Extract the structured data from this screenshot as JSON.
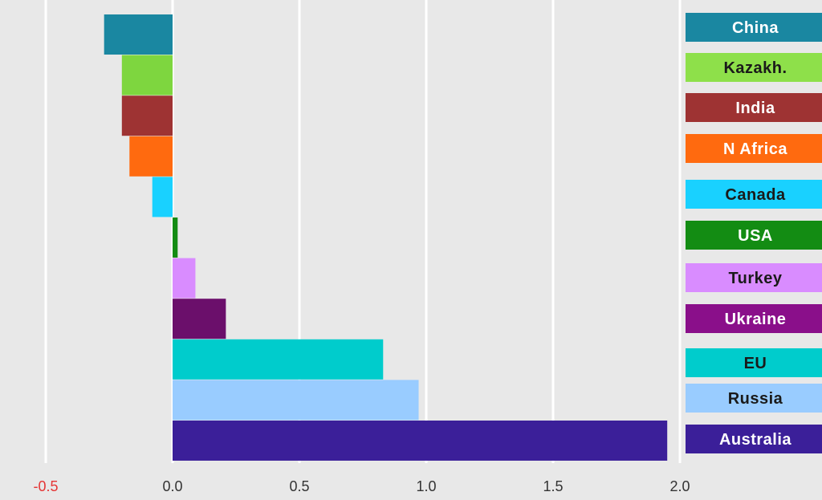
{
  "chart_data": {
    "type": "bar",
    "orientation": "horizontal",
    "categories": [
      "China",
      "Kazakh.",
      "India",
      "N Africa",
      "Canada",
      "USA",
      "Turkey",
      "Ukraine",
      "EU",
      "Russia",
      "Australia"
    ],
    "values": [
      -0.27,
      -0.2,
      -0.2,
      -0.17,
      -0.08,
      0.02,
      0.09,
      0.21,
      0.83,
      0.97,
      1.95
    ],
    "colors": [
      "#1a87a1",
      "#7ed63f",
      "#9e3333",
      "#ff6a0f",
      "#19d1ff",
      "#138c13",
      "#d98cff",
      "#6b0f6b",
      "#00cccc",
      "#99ccff",
      "#3b1f99"
    ],
    "legend": [
      {
        "label": "China",
        "color": "#1a87a1",
        "text_color": "#ffffff"
      },
      {
        "label": "Kazakh.",
        "color": "#8ee04a",
        "text_color": "#1a1a1a"
      },
      {
        "label": "India",
        "color": "#9e3333",
        "text_color": "#ffffff"
      },
      {
        "label": "N Africa",
        "color": "#ff6a0f",
        "text_color": "#ffffff"
      },
      {
        "label": "Canada",
        "color": "#19d1ff",
        "text_color": "#1a1a1a"
      },
      {
        "label": "USA",
        "color": "#138c13",
        "text_color": "#ffffff"
      },
      {
        "label": "Turkey",
        "color": "#d98cff",
        "text_color": "#1a1a1a"
      },
      {
        "label": "Ukraine",
        "color": "#8a0f8a",
        "text_color": "#ffffff"
      },
      {
        "label": "EU",
        "color": "#00cccc",
        "text_color": "#1a1a1a"
      },
      {
        "label": "Russia",
        "color": "#99ccff",
        "text_color": "#1a1a1a"
      },
      {
        "label": "Australia",
        "color": "#3b1f99",
        "text_color": "#ffffff"
      }
    ],
    "x_ticks": [
      {
        "value": -0.5,
        "label": "-0.5",
        "color": "#e53535"
      },
      {
        "value": 0.0,
        "label": "0.0",
        "color": "#333333"
      },
      {
        "value": 0.5,
        "label": "0.5",
        "color": "#333333"
      },
      {
        "value": 1.0,
        "label": "1.0",
        "color": "#333333"
      },
      {
        "value": 1.5,
        "label": "1.5",
        "color": "#333333"
      },
      {
        "value": 2.0,
        "label": "2.0",
        "color": "#333333"
      }
    ],
    "xlim": [
      -0.5,
      2.0
    ],
    "grid": true,
    "grid_color": "#ffffff",
    "legend_position": "right",
    "background": "#e8e8e8"
  }
}
